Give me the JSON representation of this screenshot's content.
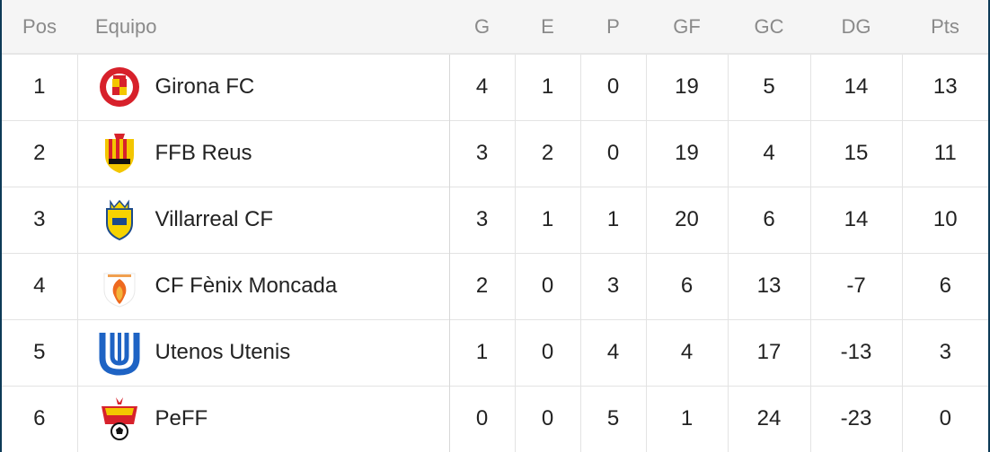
{
  "headers": {
    "pos": "Pos",
    "team": "Equipo",
    "g": "G",
    "e": "E",
    "p": "P",
    "gf": "GF",
    "gc": "GC",
    "dg": "DG",
    "pts": "Pts"
  },
  "rows": [
    {
      "pos": "1",
      "team": "Girona FC",
      "crest_icon": "girona-fc-crest-icon",
      "g": "4",
      "e": "1",
      "p": "0",
      "gf": "19",
      "gc": "5",
      "dg": "14",
      "pts": "13"
    },
    {
      "pos": "2",
      "team": "FFB Reus",
      "crest_icon": "ffb-reus-crest-icon",
      "g": "3",
      "e": "2",
      "p": "0",
      "gf": "19",
      "gc": "4",
      "dg": "15",
      "pts": "11"
    },
    {
      "pos": "3",
      "team": "Villarreal CF",
      "crest_icon": "villarreal-cf-crest-icon",
      "g": "3",
      "e": "1",
      "p": "1",
      "gf": "20",
      "gc": "6",
      "dg": "14",
      "pts": "10"
    },
    {
      "pos": "4",
      "team": "CF Fènix Moncada",
      "crest_icon": "cf-fenix-moncada-crest-icon",
      "g": "2",
      "e": "0",
      "p": "3",
      "gf": "6",
      "gc": "13",
      "dg": "-7",
      "pts": "6"
    },
    {
      "pos": "5",
      "team": "Utenos Utenis",
      "crest_icon": "utenos-utenis-crest-icon",
      "g": "1",
      "e": "0",
      "p": "4",
      "gf": "4",
      "gc": "17",
      "dg": "-13",
      "pts": "3"
    },
    {
      "pos": "6",
      "team": "PeFF",
      "crest_icon": "peff-crest-icon",
      "g": "0",
      "e": "0",
      "p": "5",
      "gf": "1",
      "gc": "24",
      "dg": "-23",
      "pts": "0"
    }
  ],
  "colors": {
    "header_bg": "#f5f5f5",
    "header_text": "#8a8a8a",
    "grid": "#e3e3e3",
    "frame": "#0d3a57"
  }
}
